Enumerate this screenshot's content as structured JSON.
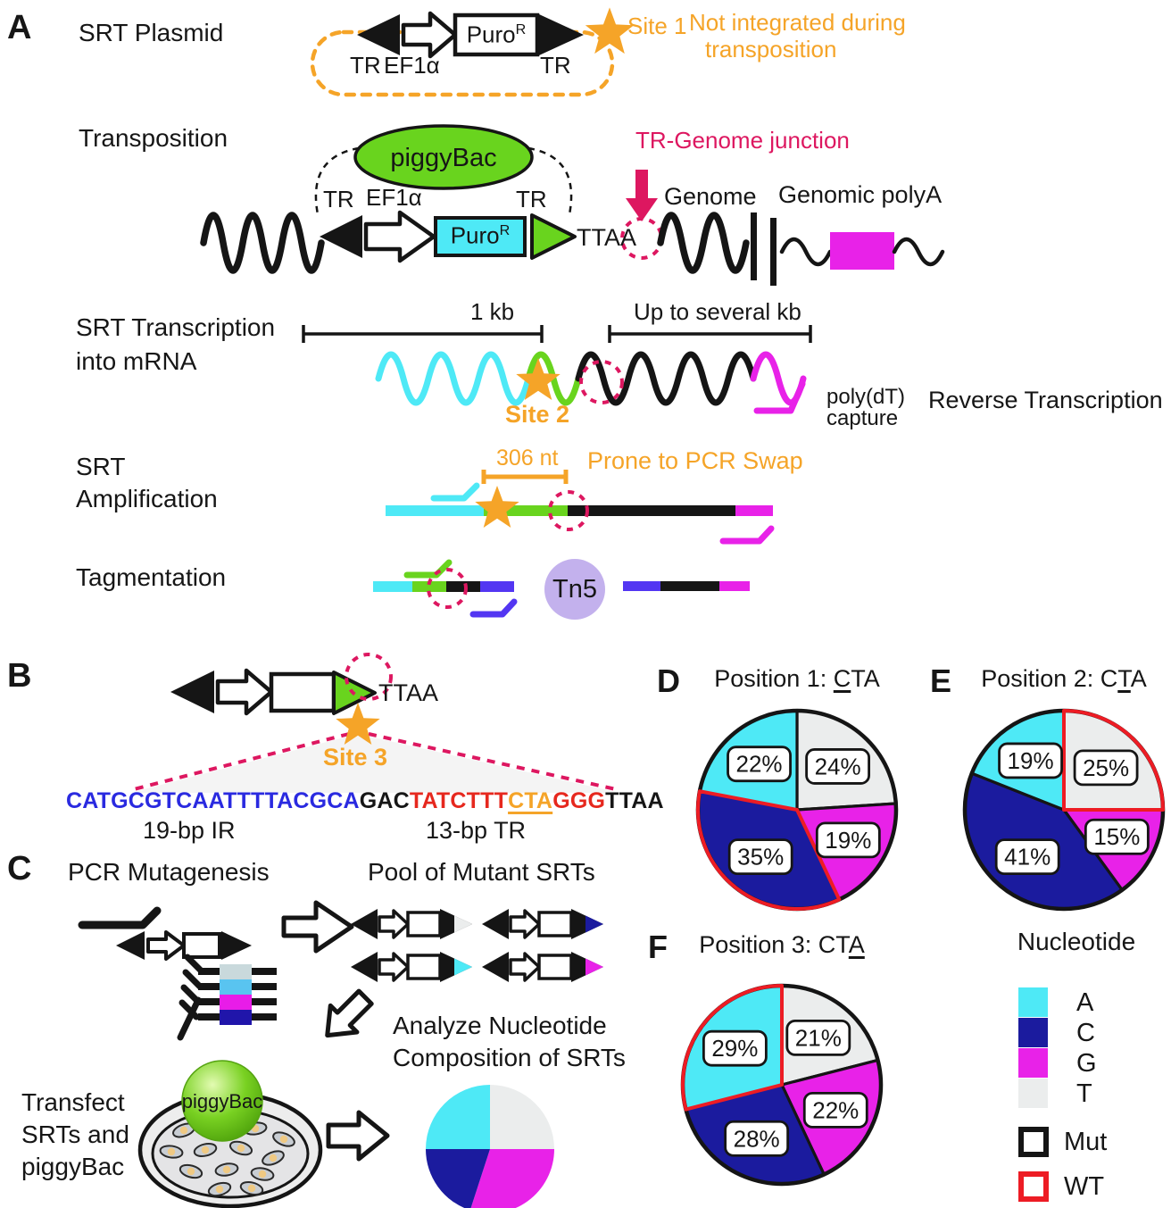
{
  "colors": {
    "accent_orange": "#F5A428",
    "crimson_junction": "#DD1760",
    "bright_green": "#69D41E",
    "cyan_A": "#4EE9F6",
    "navy_C": "#1B1B9E",
    "magenta_G": "#E822E8",
    "light_gray_T": "#EBEDED",
    "lavender_tn5": "#C3B1ED",
    "blue_violet": "#5336F2",
    "wt_red": "#ED1C24"
  },
  "panelA": {
    "label": "A",
    "row_plasmid": {
      "title": "SRT Plasmid",
      "tr_left": "TR",
      "promoter": "EF1α",
      "gene": "Puro",
      "gene_sup": "R",
      "tr_right": "TR",
      "site": "Site 1",
      "note1": "Not integrated during",
      "note2": "transposition"
    },
    "row_transposition": {
      "title": "Transposition",
      "enzyme": "piggyBac",
      "tr_left": "TR",
      "promoter": "EF1α",
      "gene": "Puro",
      "gene_sup": "R",
      "tr_right": "TR",
      "ttaa": "TTAA",
      "junction": "TR-Genome junction",
      "genome": "Genome",
      "polya": "Genomic polyA"
    },
    "row_transcription": {
      "title1": "SRT Transcription",
      "title2": "into mRNA",
      "scale_left": "1 kb",
      "scale_right": "Up to several kb",
      "site": "Site 2",
      "capture1": "poly(dT)",
      "capture2": "capture",
      "rt": "Reverse Transcription"
    },
    "row_amplification": {
      "title1": "SRT",
      "title2": "Amplification",
      "length": "306 nt",
      "warning": "Prone to PCR Swap"
    },
    "row_tagmentation": {
      "title": "Tagmentation",
      "enzyme": "Tn5"
    }
  },
  "panelB": {
    "label": "B",
    "ttaa": "TTAA",
    "site": "Site 3",
    "seq": {
      "ir": "CATGCGTCAATTTTACGCA",
      "mid": "GAC",
      "tr1": "TATCTTT",
      "core": "CTA",
      "tr2": "GGG",
      "end": "TTAA"
    },
    "ir_label": "19-bp IR",
    "tr_label": "13-bp TR"
  },
  "panelC": {
    "label": "C",
    "step_mutagenesis": "PCR Mutagenesis",
    "step_pool": "Pool of Mutant SRTs",
    "analyze1": "Analyze Nucleotide",
    "analyze2": "Composition of SRTs",
    "transfect1": "Transfect",
    "transfect2": "SRTs and",
    "transfect3": "piggyBac",
    "ball": "piggyBac"
  },
  "panel_labels": {
    "D": "D",
    "E": "E",
    "F": "F"
  },
  "legend": {
    "title": "Nucleotide",
    "nucleotides": [
      {
        "label": "A",
        "color": "#4EE9F6"
      },
      {
        "label": "C",
        "color": "#1B1B9E"
      },
      {
        "label": "G",
        "color": "#E822E8"
      },
      {
        "label": "T",
        "color": "#EBEDED"
      }
    ],
    "outlines": [
      {
        "label": "Mut",
        "color": "#151515"
      },
      {
        "label": "WT",
        "color": "#ED1C24"
      }
    ]
  },
  "chart_data": [
    {
      "panel": "D",
      "type": "pie",
      "title_pre": "Position 1: ",
      "title_underlined": "C",
      "title_post": "TA",
      "order_clockwise_from_top": [
        "T",
        "G",
        "C",
        "A"
      ],
      "labels_shown": true,
      "outlined": true,
      "slices": [
        {
          "nucleotide": "T",
          "pct": 24,
          "wildtype": false
        },
        {
          "nucleotide": "G",
          "pct": 19,
          "wildtype": false
        },
        {
          "nucleotide": "C",
          "pct": 35,
          "wildtype": true
        },
        {
          "nucleotide": "A",
          "pct": 22,
          "wildtype": false
        }
      ]
    },
    {
      "panel": "E",
      "type": "pie",
      "title_pre": "Position 2: C",
      "title_underlined": "T",
      "title_post": "A",
      "order_clockwise_from_top": [
        "T",
        "G",
        "C",
        "A"
      ],
      "labels_shown": true,
      "outlined": true,
      "slices": [
        {
          "nucleotide": "T",
          "pct": 25,
          "wildtype": true
        },
        {
          "nucleotide": "G",
          "pct": 15,
          "wildtype": false
        },
        {
          "nucleotide": "C",
          "pct": 41,
          "wildtype": false
        },
        {
          "nucleotide": "A",
          "pct": 19,
          "wildtype": false
        }
      ]
    },
    {
      "panel": "F",
      "type": "pie",
      "title_pre": "Position 3: CT",
      "title_underlined": "A",
      "title_post": "",
      "order_clockwise_from_top": [
        "T",
        "G",
        "C",
        "A"
      ],
      "labels_shown": true,
      "outlined": true,
      "slices": [
        {
          "nucleotide": "T",
          "pct": 21,
          "wildtype": false
        },
        {
          "nucleotide": "G",
          "pct": 22,
          "wildtype": false
        },
        {
          "nucleotide": "C",
          "pct": 28,
          "wildtype": false
        },
        {
          "nucleotide": "A",
          "pct": 29,
          "wildtype": true
        }
      ]
    },
    {
      "panel": "C",
      "type": "pie",
      "labels_shown": false,
      "outlined": false,
      "order_clockwise_from_top": [
        "T",
        "G",
        "C",
        "A"
      ],
      "slices": [
        {
          "nucleotide": "T",
          "pct": 25
        },
        {
          "nucleotide": "G",
          "pct": 30
        },
        {
          "nucleotide": "C",
          "pct": 20
        },
        {
          "nucleotide": "A",
          "pct": 25
        }
      ]
    }
  ]
}
